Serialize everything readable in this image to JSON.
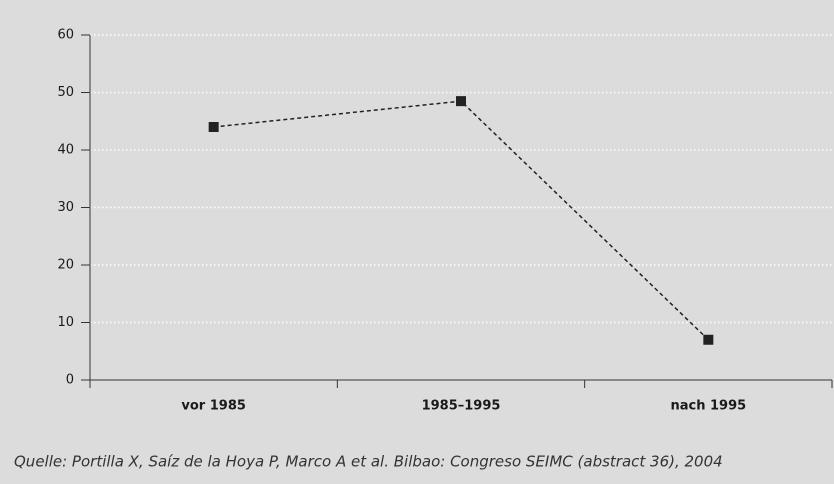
{
  "chart_data": {
    "type": "line",
    "categories": [
      "vor 1985",
      "1985–1995",
      "nach 1995"
    ],
    "values": [
      44,
      48.5,
      7
    ],
    "color": "#222222",
    "ylim": [
      0,
      60
    ],
    "yticks": [
      0,
      10,
      20,
      30,
      40,
      50,
      60
    ],
    "grid": true,
    "line_style": "dashed",
    "marker": "square",
    "source": "Quelle: Portilla X, Saíz de la Hoya P, Marco A et al. Bilbao: Congreso SEIMC (abstract 36), 2004"
  }
}
